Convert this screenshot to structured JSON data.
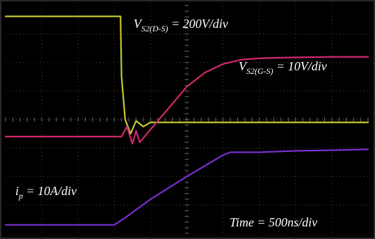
{
  "chart_data": {
    "type": "line",
    "display": "oscilloscope",
    "grid": true,
    "divisions": {
      "x": 10,
      "y": 8
    },
    "x_range_div": [
      0,
      10
    ],
    "y_range_div": [
      -4,
      4
    ],
    "colors": {
      "background": "#000000",
      "grid": "#4a4a4a",
      "vds": "#c8c832",
      "vgs": "#d2286e",
      "ip": "#7a2fd2",
      "label": "#ffffff"
    },
    "series": [
      {
        "key": "vds",
        "x": [
          0.0,
          1.0,
          2.0,
          3.0,
          3.17,
          3.2,
          3.3,
          3.45,
          3.6,
          3.8,
          4.0,
          5.0,
          7.0,
          9.0,
          10.0
        ],
        "y": [
          3.62,
          3.62,
          3.62,
          3.62,
          3.62,
          1.5,
          0.0,
          -0.5,
          -0.05,
          -0.25,
          -0.1,
          -0.1,
          -0.1,
          -0.1,
          -0.1
        ]
      },
      {
        "key": "vgs",
        "x": [
          0.0,
          1.0,
          2.0,
          3.0,
          3.2,
          3.35,
          3.5,
          3.6,
          3.7,
          3.8,
          4.0,
          4.5,
          5.0,
          5.5,
          6.0,
          6.5,
          7.0,
          8.0,
          9.0,
          10.0
        ],
        "y": [
          -0.6,
          -0.6,
          -0.6,
          -0.6,
          -0.6,
          -0.25,
          -0.85,
          -0.4,
          -0.8,
          -0.65,
          -0.35,
          0.4,
          1.15,
          1.65,
          1.95,
          2.1,
          2.15,
          2.18,
          2.2,
          2.2
        ]
      },
      {
        "key": "ip",
        "x": [
          0.0,
          1.0,
          2.0,
          3.0,
          3.3,
          4.0,
          5.0,
          6.0,
          6.2,
          7.0,
          8.0,
          9.0,
          10.0
        ],
        "y": [
          -3.7,
          -3.7,
          -3.7,
          -3.7,
          -3.45,
          -2.8,
          -2.0,
          -1.25,
          -1.15,
          -1.15,
          -1.1,
          -1.08,
          -1.05
        ]
      }
    ],
    "annotations": [
      {
        "key": "vds",
        "base": "V",
        "sub": "S2(D-S)",
        "suffix": " = 200V/div"
      },
      {
        "key": "vgs",
        "base": "V",
        "sub": "S2(G-S)",
        "suffix": " = 10V/div"
      },
      {
        "key": "ip",
        "base": "i",
        "sub": "p",
        "suffix": " = 10A/div"
      },
      {
        "key": "time",
        "base": "Time",
        "sub": "",
        "suffix": " = 500ns/div"
      }
    ]
  }
}
